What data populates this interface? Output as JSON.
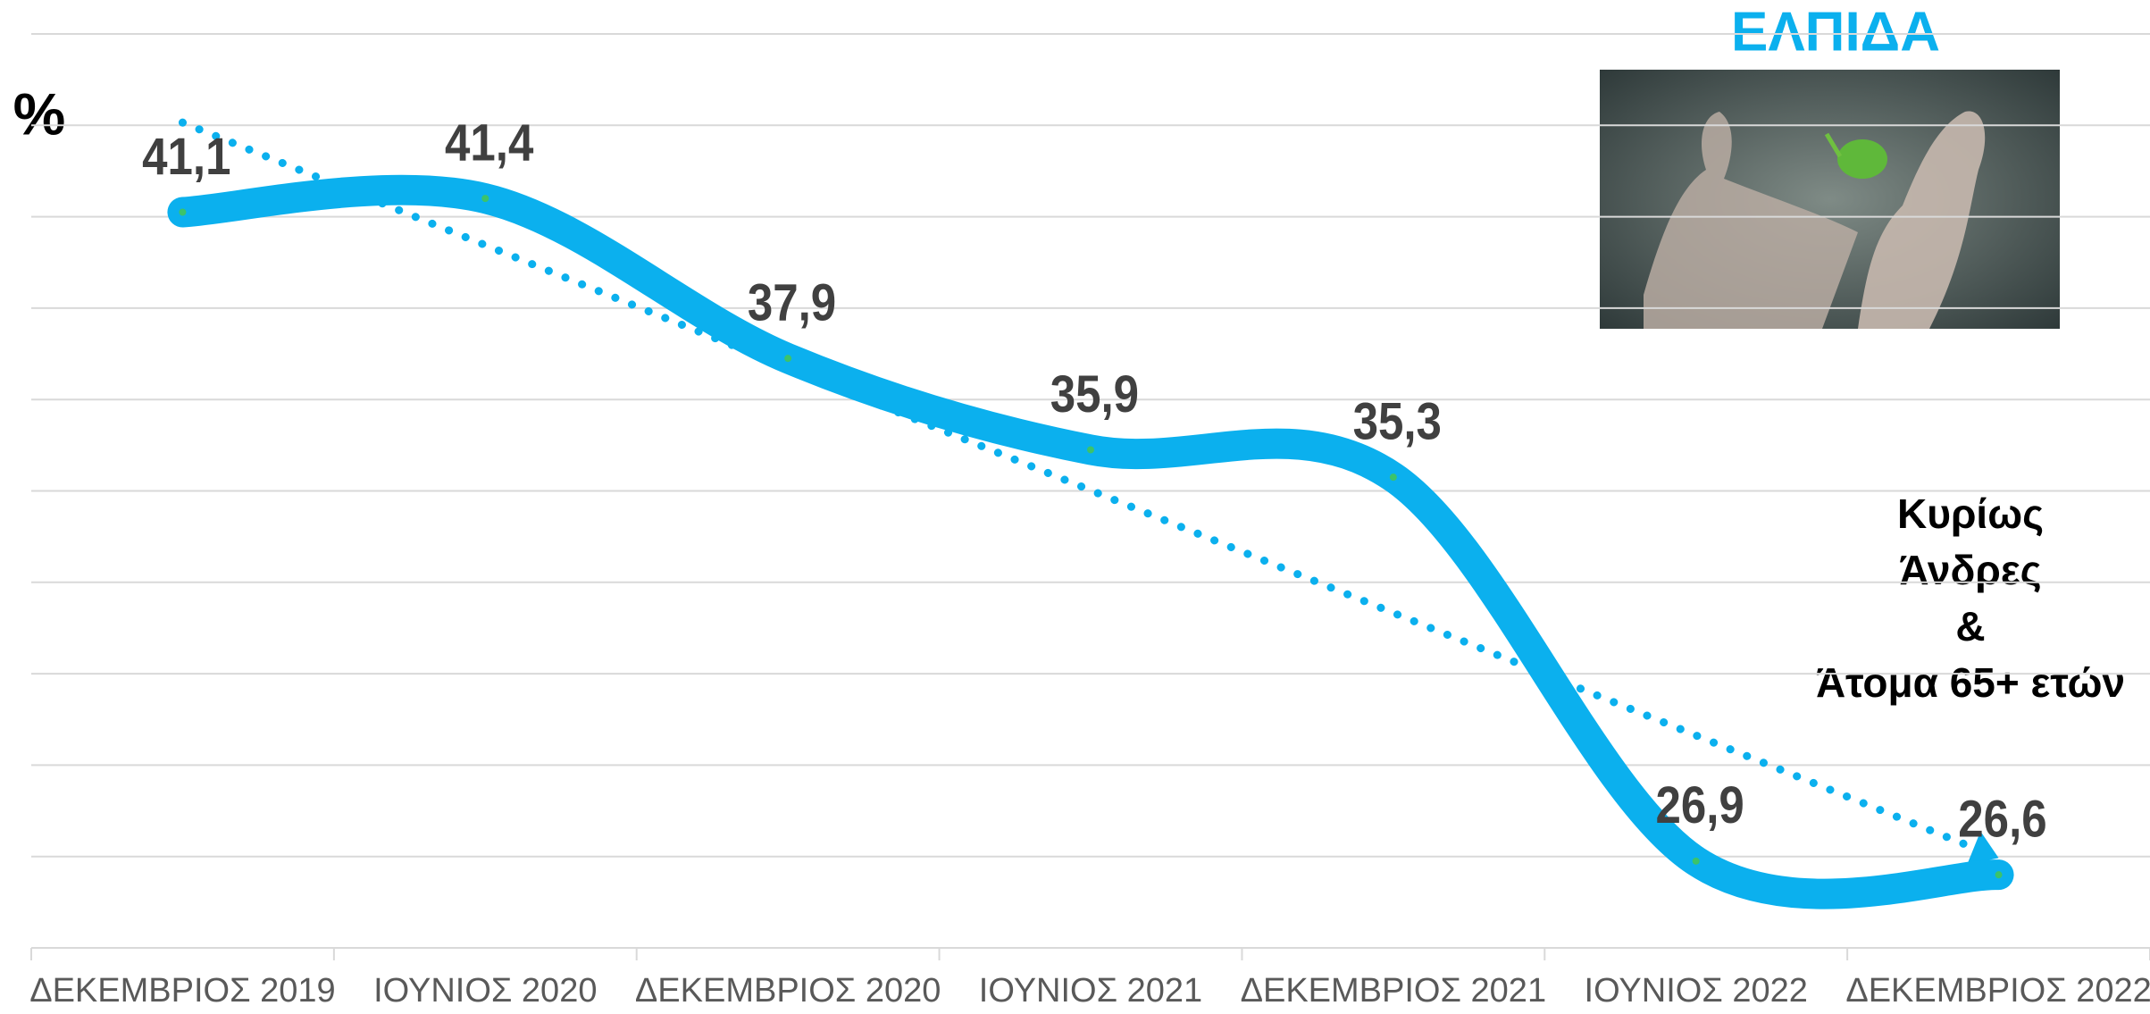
{
  "chart_data": {
    "type": "line",
    "title": "ΕΛΠΙΔΑ",
    "y_label": "%",
    "annotation": [
      "Κυρίως",
      "Άνδρες",
      "&",
      "Άτομα 65+ ετών"
    ],
    "categories": [
      "ΔΕΚΕΜΒΡΙΟΣ 2019",
      "ΙΟΥΝΙΟΣ 2020",
      "ΔΕΚΕΜΒΡΙΟΣ 2020",
      "ΙΟΥΝΙΟΣ 2021",
      "ΔΕΚΕΜΒΡΙΟΣ 2021",
      "ΙΟΥΝΙΟΣ 2022",
      "ΔΕΚΕΜΒΡΙΟΣ 2022"
    ],
    "values": [
      41.1,
      41.4,
      37.9,
      35.9,
      35.3,
      26.9,
      26.6
    ],
    "value_labels": [
      "41,1",
      "41,4",
      "37,9",
      "35,9",
      "35,3",
      "26,9",
      "26,6"
    ],
    "color": "#0bb0ee",
    "smooth": true,
    "trendline": "linear",
    "ylim": [
      25,
      45
    ],
    "yticks": [
      25,
      27,
      29,
      31,
      33,
      35,
      37,
      39,
      41,
      43,
      45
    ],
    "grid": true
  }
}
